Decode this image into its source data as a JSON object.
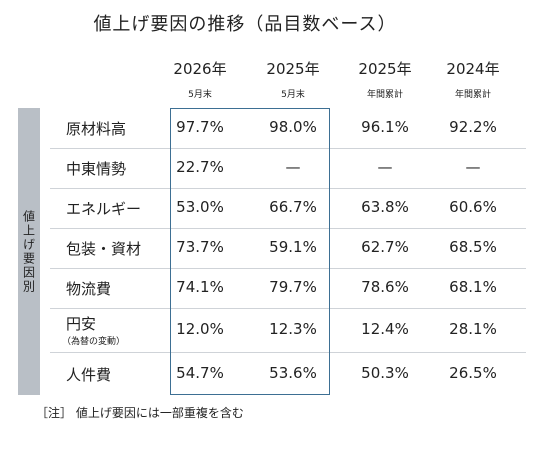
{
  "title": "値上げ要因の推移（品目数ベース）",
  "side_label": "値上げ要因別",
  "columns": [
    {
      "year": "2026年",
      "sub": "5月末"
    },
    {
      "year": "2025年",
      "sub": "5月末"
    },
    {
      "year": "2025年",
      "sub": "年間累計"
    },
    {
      "year": "2024年",
      "sub": "年間累計"
    }
  ],
  "rows": [
    {
      "label": "原材料高",
      "values": [
        "97.7%",
        "98.0%",
        "96.1%",
        "92.2%"
      ]
    },
    {
      "label": "中東情勢",
      "values": [
        "22.7%",
        "—",
        "—",
        "—"
      ]
    },
    {
      "label": "エネルギー",
      "values": [
        "53.0%",
        "66.7%",
        "63.8%",
        "60.6%"
      ]
    },
    {
      "label": "包装・資材",
      "values": [
        "73.7%",
        "59.1%",
        "62.7%",
        "68.5%"
      ]
    },
    {
      "label": "物流費",
      "values": [
        "74.1%",
        "79.7%",
        "78.6%",
        "68.1%"
      ]
    },
    {
      "label": "円安",
      "sublabel": "（為替の変動）",
      "values": [
        "12.0%",
        "12.3%",
        "12.4%",
        "28.1%"
      ]
    },
    {
      "label": "人件費",
      "values": [
        "54.7%",
        "53.6%",
        "50.3%",
        "26.5%"
      ]
    }
  ],
  "note": "［注］ 値上げ要因には一部重複を含む"
}
